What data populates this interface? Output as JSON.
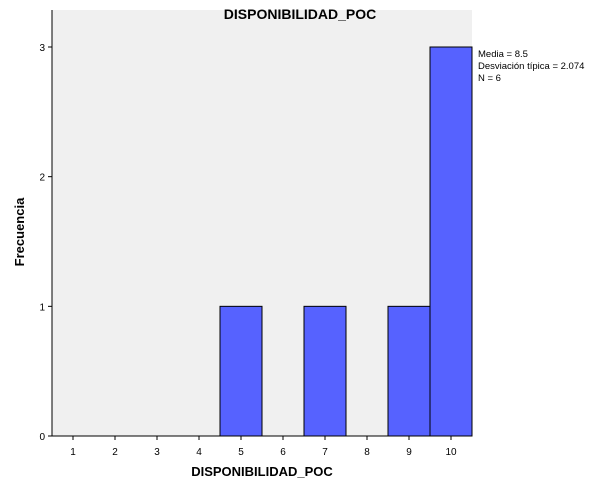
{
  "chart_data": {
    "type": "bar",
    "title": "DISPONIBILIDAD_POC",
    "xlabel": "DISPONIBILIDAD_POC",
    "ylabel": "Frecuencia",
    "x_ticks": [
      "1",
      "2",
      "3",
      "4",
      "5",
      "6",
      "7",
      "8",
      "9",
      "10"
    ],
    "y_ticks": [
      "0",
      "1",
      "2",
      "3"
    ],
    "xlim": [
      0.5,
      10.5
    ],
    "ylim": [
      0,
      3
    ],
    "bins": [
      {
        "x": 5,
        "value": 1
      },
      {
        "x": 7,
        "value": 1
      },
      {
        "x": 9,
        "value": 1
      },
      {
        "x": 10,
        "value": 3
      }
    ],
    "bar_color": "#5662ff",
    "plot_background": "#f0f0f0",
    "grid": false,
    "stats": {
      "mean": "Media = 8.5",
      "std": "Desviación típica = 2.074",
      "n": "N = 6"
    }
  }
}
